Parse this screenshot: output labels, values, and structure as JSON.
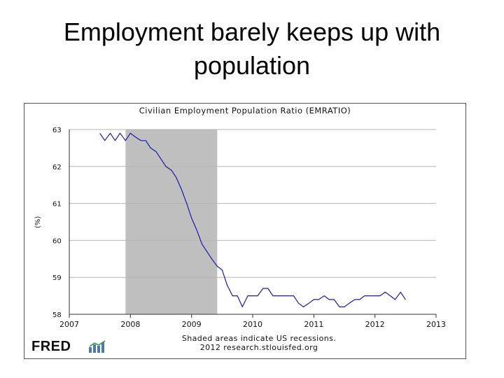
{
  "slide": {
    "title_line1": "Employment barely keeps up with",
    "title_line2": "population"
  },
  "logo_text": "FRED",
  "footnote": {
    "line1": "Shaded areas indicate US recessions.",
    "line2": "2012 research.stlouisfed.org"
  },
  "colors": {
    "series": "#1a1aa8",
    "recession": "#bfbfbf",
    "grid": "#b5b5b5"
  },
  "chart_data": {
    "type": "line",
    "title": "Civilian Employment Population Ratio (EMRATIO)",
    "xlabel": "",
    "ylabel": "(%)",
    "xlim": [
      2007,
      2013
    ],
    "ylim": [
      58,
      63
    ],
    "xticks": [
      "2007",
      "2008",
      "2009",
      "2010",
      "2011",
      "2012",
      "2013"
    ],
    "yticks": [
      "58",
      "59",
      "60",
      "61",
      "62",
      "63"
    ],
    "grid": true,
    "recession": {
      "start": 2007.92,
      "end": 2009.42
    },
    "series": [
      {
        "x": [
          2007.5,
          2007.58,
          2007.67,
          2007.75,
          2007.83,
          2007.92,
          2008.0,
          2008.08,
          2008.17,
          2008.25,
          2008.33,
          2008.42,
          2008.5,
          2008.58,
          2008.67,
          2008.75,
          2008.83,
          2008.92,
          2009.0,
          2009.08,
          2009.17,
          2009.25,
          2009.33,
          2009.42,
          2009.5,
          2009.58,
          2009.67,
          2009.75,
          2009.83,
          2009.92,
          2010.0,
          2010.08,
          2010.17,
          2010.25,
          2010.33,
          2010.42,
          2010.5,
          2010.58,
          2010.67,
          2010.75,
          2010.83,
          2010.92,
          2011.0,
          2011.08,
          2011.17,
          2011.25,
          2011.33,
          2011.42,
          2011.5,
          2011.58,
          2011.67,
          2011.75,
          2011.83,
          2011.92,
          2012.0,
          2012.08,
          2012.17,
          2012.25,
          2012.33,
          2012.42,
          2012.5
        ],
        "values": [
          62.9,
          62.7,
          62.9,
          62.7,
          62.9,
          62.7,
          62.9,
          62.8,
          62.7,
          62.7,
          62.5,
          62.4,
          62.2,
          62.0,
          61.9,
          61.7,
          61.4,
          61.0,
          60.6,
          60.3,
          59.9,
          59.7,
          59.5,
          59.3,
          59.2,
          58.8,
          58.5,
          58.5,
          58.2,
          58.5,
          58.5,
          58.5,
          58.7,
          58.7,
          58.5,
          58.5,
          58.5,
          58.5,
          58.5,
          58.3,
          58.2,
          58.3,
          58.4,
          58.4,
          58.5,
          58.4,
          58.4,
          58.2,
          58.2,
          58.3,
          58.4,
          58.4,
          58.5,
          58.5,
          58.5,
          58.5,
          58.6,
          58.5,
          58.4,
          58.6,
          58.4
        ]
      }
    ]
  }
}
